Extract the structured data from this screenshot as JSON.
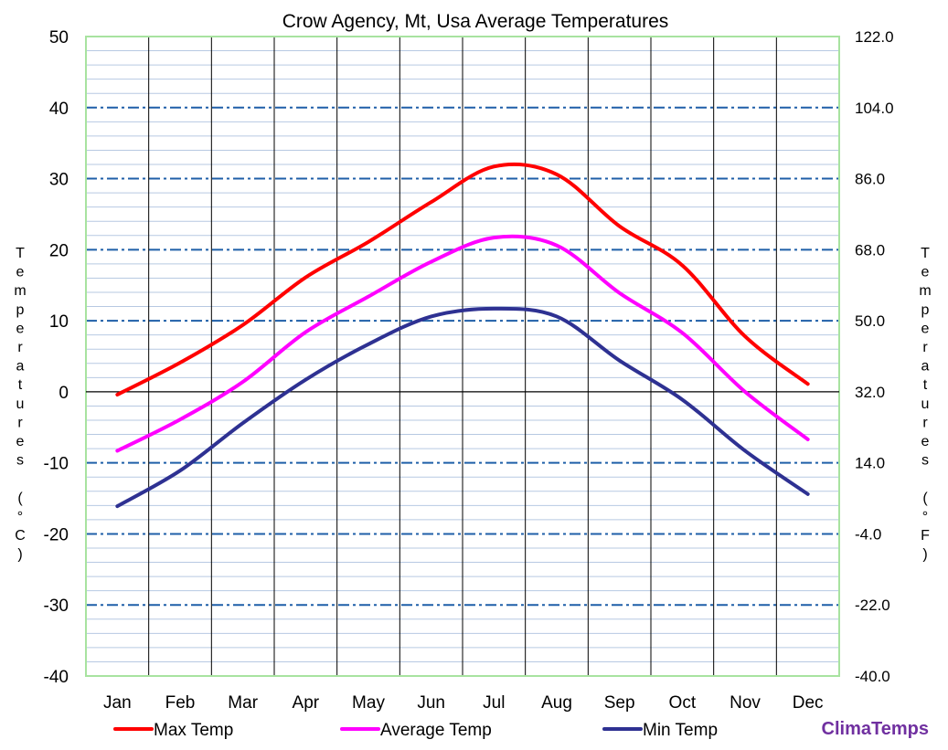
{
  "chart_data": {
    "type": "line",
    "title": "Crow Agency, Mt, Usa Average Temperatures",
    "categories": [
      "Jan",
      "Feb",
      "Mar",
      "Apr",
      "May",
      "Jun",
      "Jul",
      "Aug",
      "Sep",
      "Oct",
      "Nov",
      "Dec"
    ],
    "series": [
      {
        "name": "Max Temp",
        "color": "#ff0000",
        "values": [
          -0.4,
          4.1,
          9.4,
          16.1,
          21.1,
          26.7,
          31.7,
          30.6,
          23.3,
          17.8,
          7.8,
          1.1
        ]
      },
      {
        "name": "Average Temp",
        "color": "#ff00ff",
        "values": [
          -8.3,
          -3.9,
          1.4,
          8.4,
          13.4,
          18.3,
          21.7,
          20.6,
          13.9,
          8.3,
          0.0,
          -6.7
        ]
      },
      {
        "name": "Min Temp",
        "color": "#2e3192",
        "values": [
          -16.1,
          -11.1,
          -4.4,
          1.7,
          6.7,
          10.6,
          11.7,
          10.6,
          4.4,
          -1.1,
          -8.3,
          -14.4
        ]
      }
    ],
    "ylabel_left": "Temperatures (°C)",
    "ylabel_right": "Temperatures (°F)",
    "ylim": [
      -40,
      50
    ],
    "yticks_left": [
      "50",
      "40",
      "30",
      "20",
      "10",
      "0",
      "-10",
      "-20",
      "-30",
      "-40"
    ],
    "yticks_right": [
      "122.0",
      "104.0",
      "86.0",
      "68.0",
      "50.0",
      "32.0",
      "14.0",
      "-4.0",
      "-22.0",
      "-40.0"
    ],
    "grid": true,
    "legend_position": "bottom"
  },
  "branding": "ClimaTemps"
}
